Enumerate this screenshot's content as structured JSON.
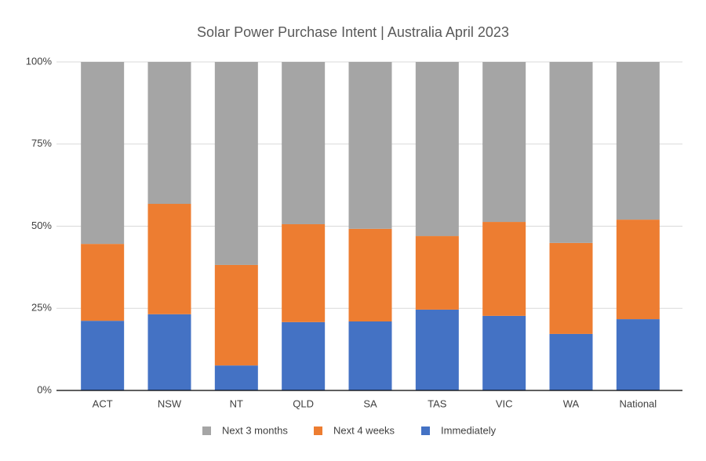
{
  "chart_data": {
    "type": "stacked-bar",
    "title": "Solar Power Purchase Intent | Australia April 2023",
    "categories": [
      "ACT",
      "NSW",
      "NT",
      "QLD",
      "SA",
      "TAS",
      "VIC",
      "WA",
      "National"
    ],
    "series": [
      {
        "name": "Immediately",
        "color": "#4472c4",
        "values": [
          21.2,
          23.2,
          7.6,
          20.8,
          21.0,
          24.6,
          22.7,
          17.2,
          21.7
        ]
      },
      {
        "name": "Next 4 weeks",
        "color": "#ed7d31",
        "values": [
          23.4,
          33.6,
          30.6,
          29.8,
          28.2,
          22.4,
          28.6,
          27.7,
          30.3
        ]
      },
      {
        "name": "Next 3 months",
        "color": "#a5a5a5",
        "values": [
          55.4,
          43.2,
          61.8,
          49.4,
          50.8,
          53.0,
          48.7,
          55.1,
          48.0
        ]
      }
    ],
    "ylim": [
      0,
      100
    ],
    "yticks": [
      {
        "value": 0,
        "label": "0%"
      },
      {
        "value": 25,
        "label": "25%"
      },
      {
        "value": 50,
        "label": "50%"
      },
      {
        "value": 75,
        "label": "75%"
      },
      {
        "value": 100,
        "label": "100%"
      }
    ],
    "grid": true,
    "legend": "bottom"
  }
}
